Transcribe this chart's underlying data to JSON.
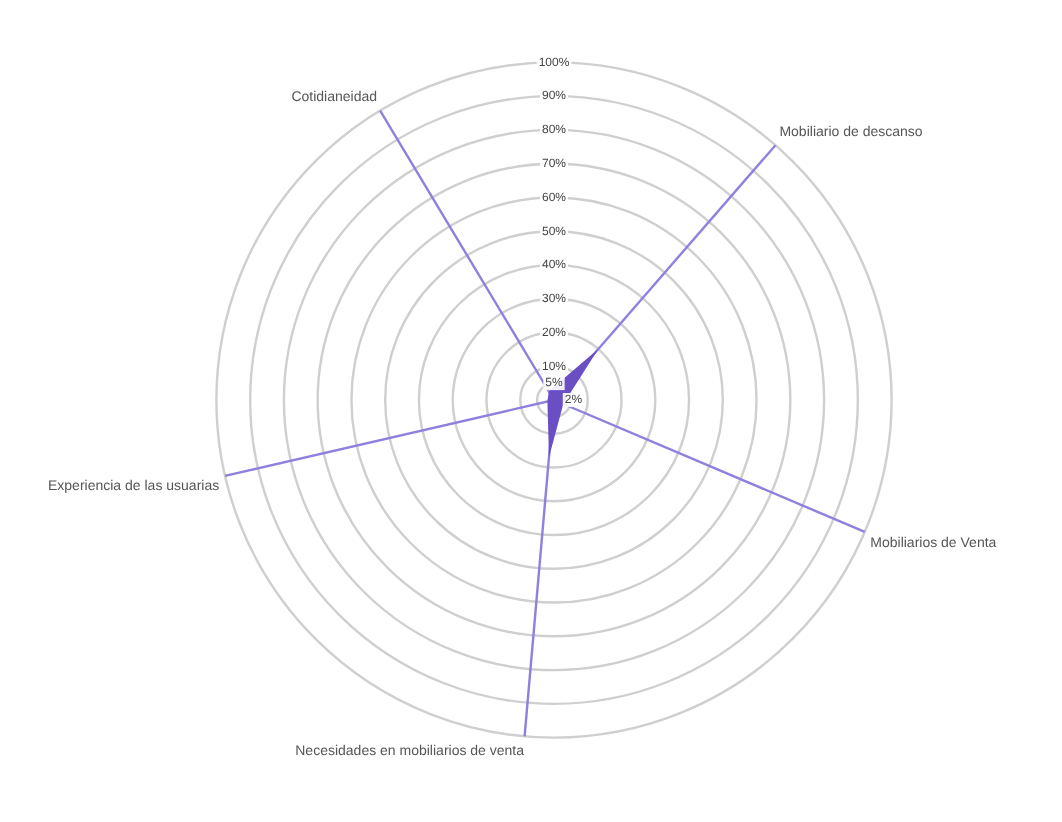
{
  "chart_data": {
    "type": "radar",
    "categories": [
      "Mobiliario de descanso",
      "Mobiliarios de Venta",
      "Necesidades en mobiliarios de venta",
      "Experiencia de las usuarias",
      "Cotidianeidad"
    ],
    "series": [
      {
        "color": "#6a4fc4",
        "values": [
          20,
          3,
          17,
          2,
          3
        ]
      }
    ],
    "ylim": [
      0,
      100
    ],
    "yticks": [
      {
        "value": 2,
        "label": "2%"
      },
      {
        "value": 5,
        "label": "5%"
      },
      {
        "value": 10,
        "label": "10%"
      },
      {
        "value": 20,
        "label": "20%"
      },
      {
        "value": 30,
        "label": "30%"
      },
      {
        "value": 40,
        "label": "40%"
      },
      {
        "value": 50,
        "label": "50%"
      },
      {
        "value": 60,
        "label": "60%"
      },
      {
        "value": 70,
        "label": "70%"
      },
      {
        "value": 80,
        "label": "80%"
      },
      {
        "value": 90,
        "label": "90%"
      },
      {
        "value": 100,
        "label": "100%"
      }
    ],
    "grid": true,
    "legend": false,
    "marker": "none"
  }
}
